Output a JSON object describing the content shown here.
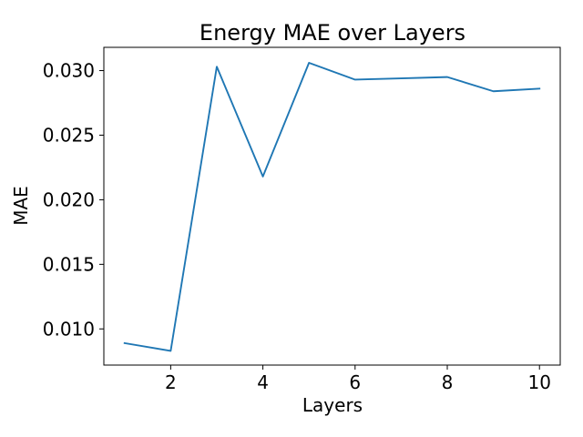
{
  "chart_data": {
    "type": "line",
    "title": "Energy MAE over Layers",
    "xlabel": "Layers",
    "ylabel": "MAE",
    "xlim": [
      0.55,
      10.45
    ],
    "ylim": [
      0.0072,
      0.0318
    ],
    "xticks": [
      2,
      4,
      6,
      8,
      10
    ],
    "xtick_labels": [
      "2",
      "4",
      "6",
      "8",
      "10"
    ],
    "yticks": [
      0.01,
      0.015,
      0.02,
      0.025,
      0.03
    ],
    "ytick_labels": [
      "0.010",
      "0.015",
      "0.020",
      "0.025",
      "0.030"
    ],
    "grid": false,
    "series": [
      {
        "color": "#1f77b4",
        "x": [
          1,
          2,
          3,
          4,
          5,
          6,
          7,
          8,
          9,
          10
        ],
        "y": [
          0.0089,
          0.0083,
          0.0303,
          0.0218,
          0.0306,
          0.0293,
          0.0294,
          0.0295,
          0.0284,
          0.0286
        ]
      }
    ]
  }
}
